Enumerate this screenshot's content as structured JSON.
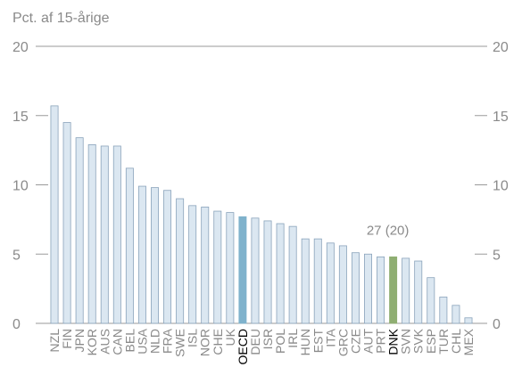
{
  "chart_data": {
    "type": "bar",
    "ylabel": "Pct. af 15-årige",
    "ylim": [
      0,
      20
    ],
    "yticks": [
      0,
      5,
      10,
      15,
      20
    ],
    "grid": false,
    "annotation": "27 (20)",
    "categories": [
      "NZL",
      "FIN",
      "JPN",
      "KOR",
      "AUS",
      "CAN",
      "BEL",
      "USA",
      "NLD",
      "FRA",
      "SWE",
      "ISL",
      "NOR",
      "CHE",
      "UK",
      "OECD",
      "DEU",
      "ISR",
      "POL",
      "IRL",
      "HUN",
      "EST",
      "ITA",
      "GRC",
      "CZE",
      "AUT",
      "PRT",
      "DNK",
      "SVN",
      "SVK",
      "ESP",
      "TUR",
      "CHL",
      "MEX"
    ],
    "values": [
      15.7,
      14.5,
      13.4,
      12.9,
      12.8,
      12.8,
      11.2,
      9.9,
      9.8,
      9.6,
      9.0,
      8.5,
      8.4,
      8.1,
      8.0,
      7.7,
      7.6,
      7.4,
      7.2,
      7.0,
      6.1,
      6.1,
      5.8,
      5.6,
      5.1,
      5.0,
      4.8,
      4.8,
      4.7,
      4.5,
      3.3,
      1.9,
      1.3,
      0.4
    ],
    "highlight": {
      "OECD": "#7fb2cc",
      "DNK": "#8fae72"
    },
    "bar_color": "#dbe7f1",
    "bar_edge": "#8aa3bb",
    "axis_color": "#9a9a9a"
  }
}
